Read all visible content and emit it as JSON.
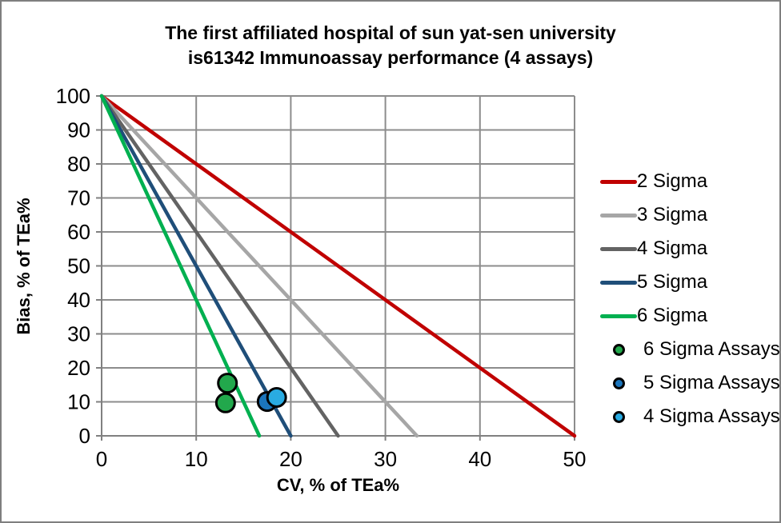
{
  "title": {
    "line1": "The first affiliated hospital of sun yat-sen university",
    "line2": "is61342 Immunoassay performance (4 assays)"
  },
  "chart_data": {
    "type": "line+scatter",
    "title": "The first affiliated hospital of sun yat-sen university is61342 Immunoassay performance (4 assays)",
    "xlabel": "CV, % of TEa%",
    "ylabel": "Bias, % of TEa%",
    "xlim": [
      0,
      50
    ],
    "ylim": [
      0,
      100
    ],
    "xticks": [
      0,
      10,
      20,
      30,
      40,
      50
    ],
    "yticks": [
      0,
      10,
      20,
      30,
      40,
      50,
      60,
      70,
      80,
      90,
      100
    ],
    "grid": true,
    "legend_position": "right",
    "lines": [
      {
        "name": "2 Sigma",
        "color": "#c00000",
        "x": [
          0,
          50
        ],
        "y": [
          100,
          0
        ]
      },
      {
        "name": "3 Sigma",
        "color": "#a6a6a6",
        "x": [
          0,
          33.33
        ],
        "y": [
          100,
          0
        ]
      },
      {
        "name": "4 Sigma",
        "color": "#636363",
        "x": [
          0,
          25
        ],
        "y": [
          100,
          0
        ]
      },
      {
        "name": "5 Sigma",
        "color": "#1f4e79",
        "x": [
          0,
          20
        ],
        "y": [
          100,
          0
        ]
      },
      {
        "name": "6 Sigma",
        "color": "#00b050",
        "x": [
          0,
          16.67
        ],
        "y": [
          100,
          0
        ]
      }
    ],
    "scatter": [
      {
        "name": "6 Sigma Assays",
        "color": "#22a84c",
        "points": [
          [
            13.3,
            15.5
          ],
          [
            13.1,
            9.7
          ]
        ]
      },
      {
        "name": "5 Sigma Assays",
        "color": "#1b75bc",
        "points": [
          [
            17.5,
            10.1
          ]
        ]
      },
      {
        "name": "4 Sigma Assays",
        "color": "#29abe2",
        "points": [
          [
            18.5,
            11.3
          ]
        ]
      }
    ]
  },
  "colors": {
    "background": "#ffffff",
    "border": "#7f7f7f",
    "grid": "#8c8c8c",
    "axis": "#808080",
    "marker_outline": "#000000"
  }
}
